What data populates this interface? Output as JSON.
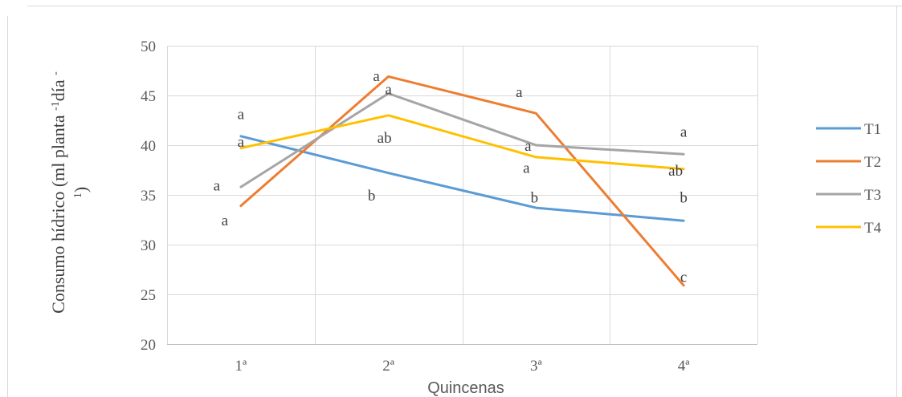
{
  "chart_data": {
    "type": "line",
    "categories": [
      "1ª",
      "2ª",
      "3ª",
      "4ª"
    ],
    "ylim": [
      20,
      50
    ],
    "yticks": [
      20,
      25,
      30,
      35,
      40,
      45,
      50
    ],
    "xlabel": "Quincenas",
    "ylabel": "Consumo hídrico (ml planta -1día -1)",
    "ylabel_line1": "Consumo hídrico (ml planta ",
    "ylabel_sup1": "-1",
    "ylabel_mid": "día ",
    "ylabel_sup2": "-",
    "ylabel_line2": "1",
    "ylabel_close": ")",
    "grid": true,
    "legend": "right",
    "series": [
      {
        "name": "T1",
        "color": "#5b9bd5",
        "values": [
          40.9,
          37.2,
          33.7,
          32.4
        ]
      },
      {
        "name": "T2",
        "color": "#ed7d31",
        "values": [
          33.9,
          46.9,
          43.2,
          25.9
        ]
      },
      {
        "name": "T3",
        "color": "#a5a5a5",
        "values": [
          35.8,
          45.2,
          40.0,
          39.1
        ]
      },
      {
        "name": "T4",
        "color": "#ffc000",
        "values": [
          39.7,
          43.0,
          38.8,
          37.6
        ]
      }
    ],
    "annotations": [
      {
        "text": "a",
        "x": 0,
        "y": 43.2,
        "dx": 0
      },
      {
        "text": "a",
        "x": 0,
        "y": 40.4,
        "dx": 0
      },
      {
        "text": "a",
        "x": 0,
        "y": 36.0,
        "dx": -30
      },
      {
        "text": "a",
        "x": 0,
        "y": 32.5,
        "dx": -20
      },
      {
        "text": "a",
        "x": 1,
        "y": 47.0,
        "dx": -15
      },
      {
        "text": "a",
        "x": 1,
        "y": 45.7,
        "dx": 0
      },
      {
        "text": "ab",
        "x": 1,
        "y": 40.8,
        "dx": -5
      },
      {
        "text": "b",
        "x": 1,
        "y": 35.0,
        "dx": -21
      },
      {
        "text": "a",
        "x": 2,
        "y": 45.4,
        "dx": -21
      },
      {
        "text": "a",
        "x": 2,
        "y": 40.0,
        "dx": -10
      },
      {
        "text": "a",
        "x": 2,
        "y": 37.8,
        "dx": -12
      },
      {
        "text": "b",
        "x": 2,
        "y": 34.8,
        "dx": -2
      },
      {
        "text": "a",
        "x": 3,
        "y": 41.4,
        "dx": 0
      },
      {
        "text": "ab",
        "x": 3,
        "y": 37.5,
        "dx": -10
      },
      {
        "text": "b",
        "x": 3,
        "y": 34.8,
        "dx": 0
      },
      {
        "text": "c",
        "x": 3,
        "y": 26.8,
        "dx": 0
      }
    ]
  }
}
